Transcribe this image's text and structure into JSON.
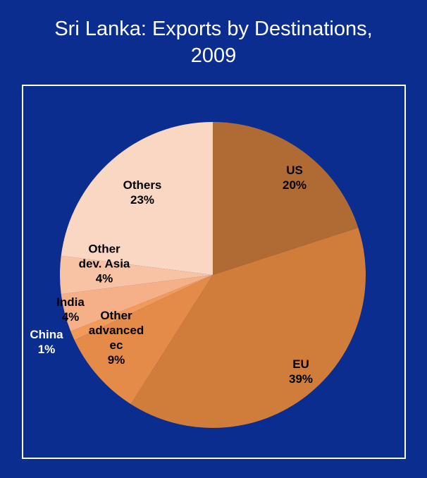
{
  "title_line1": "Sri Lanka: Exports by Destinations,",
  "title_line2": "2009",
  "chart_data": {
    "type": "pie",
    "title": "Sri Lanka: Exports by Destinations, 2009",
    "start_angle_deg": 0,
    "direction": "clockwise",
    "slices": [
      {
        "label": [
          "US",
          "20%"
        ],
        "name": "US",
        "value": 20,
        "color": "#b06b34",
        "text_color": "#000000"
      },
      {
        "label": [
          "EU",
          "39%"
        ],
        "name": "EU",
        "value": 39,
        "color": "#d07c3a",
        "text_color": "#000000"
      },
      {
        "label": [
          "Other",
          "advanced",
          "ec",
          "9%"
        ],
        "name": "Other advanced ec",
        "value": 9,
        "color": "#e58b4a",
        "text_color": "#000000"
      },
      {
        "label": [
          "China",
          "1%"
        ],
        "name": "China",
        "value": 1,
        "color": "#f29a5a",
        "text_color": "#ffffff"
      },
      {
        "label": [
          "India",
          "4%"
        ],
        "name": "India",
        "value": 4,
        "color": "#f6b088",
        "text_color": "#000000"
      },
      {
        "label": [
          "Other",
          "dev. Asia",
          "4%"
        ],
        "name": "Other dev. Asia",
        "value": 4,
        "color": "#f8c2a4",
        "text_color": "#000000"
      },
      {
        "label": [
          "Others",
          "23%"
        ],
        "name": "Others",
        "value": 23,
        "color": "#fad7c3",
        "text_color": "#000000"
      }
    ]
  }
}
